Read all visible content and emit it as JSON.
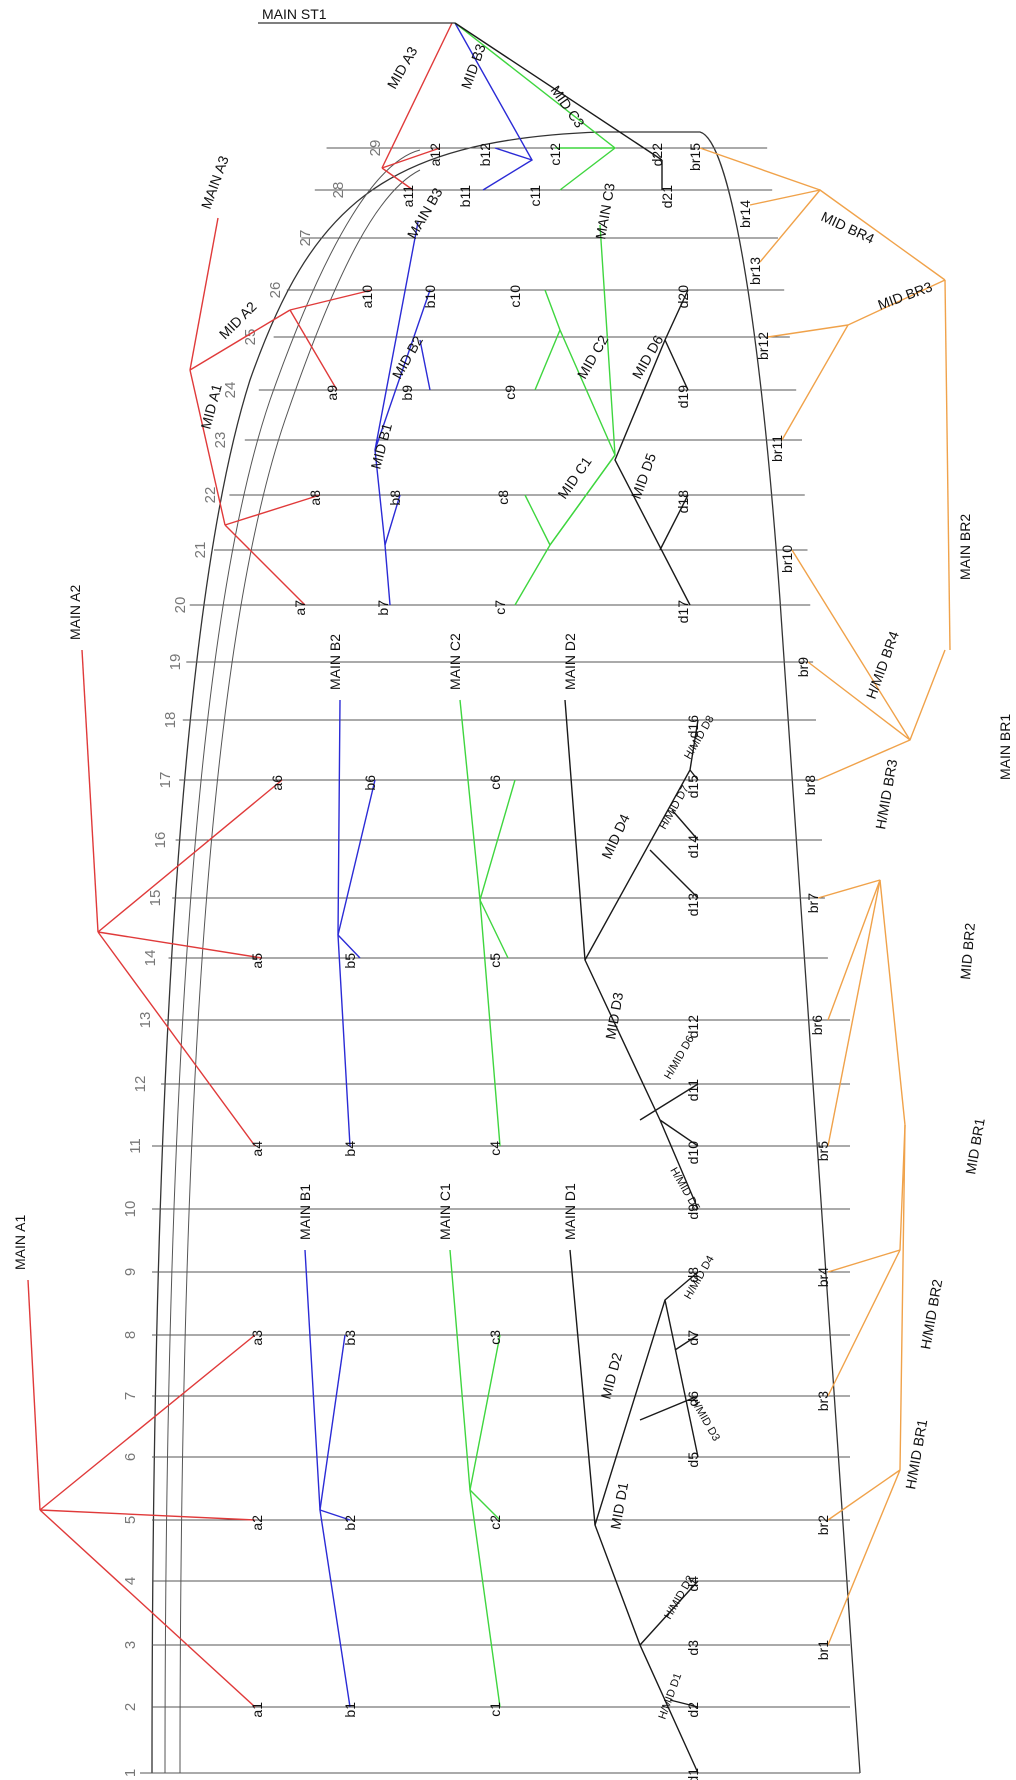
{
  "colors": {
    "a": "#e03a3a",
    "b": "#2b2bd6",
    "c": "#3fd63f",
    "d": "#1a1a1a",
    "br": "#f0a24a",
    "frame": "#333333"
  },
  "title": "MAIN ST1",
  "row_numbers": [
    "1",
    "2",
    "3",
    "4",
    "5",
    "6",
    "7",
    "8",
    "9",
    "10",
    "11",
    "12",
    "13",
    "14",
    "15",
    "16",
    "17",
    "18",
    "19",
    "20",
    "21",
    "22",
    "23",
    "24",
    "25",
    "26",
    "27",
    "28",
    "29"
  ],
  "a_points": [
    "a1",
    "a2",
    "a3",
    "a4",
    "a5",
    "a6",
    "a7",
    "a8",
    "a9",
    "a10",
    "a11",
    "a12"
  ],
  "b_points": [
    "b1",
    "b2",
    "b3",
    "b4",
    "b5",
    "b6",
    "b7",
    "b8",
    "b9",
    "b10",
    "b11",
    "b12"
  ],
  "c_points": [
    "c1",
    "c2",
    "c3",
    "c4",
    "c5",
    "c6",
    "c7",
    "c8",
    "c9",
    "c10",
    "c11",
    "c12"
  ],
  "d_points": [
    "d1",
    "d2",
    "d3",
    "d4",
    "d5",
    "d6",
    "d7",
    "d8",
    "d9",
    "d10",
    "d11",
    "d12",
    "d13",
    "d14",
    "d15",
    "d16",
    "d17",
    "d18",
    "d19",
    "d20",
    "d21",
    "d22"
  ],
  "br_points": [
    "br1",
    "br2",
    "br3",
    "br4",
    "br5",
    "br6",
    "br7",
    "br8",
    "br9",
    "br10",
    "br11",
    "br12",
    "br13",
    "br14",
    "br15"
  ],
  "branch_labels": {
    "main_a1": "MAIN A1",
    "main_a2": "MAIN A2",
    "main_a3": "MAIN A3",
    "mid_a1": "MID A1",
    "mid_a2": "MID A2",
    "mid_a3": "MID A3",
    "main_b1": "MAIN B1",
    "main_b2": "MAIN B2",
    "main_b3": "MAIN B3",
    "mid_b1": "MID B1",
    "mid_b2": "MID B2",
    "mid_b3": "MID B3",
    "main_c1": "MAIN C1",
    "main_c2": "MAIN C2",
    "main_c3": "MAIN C3",
    "mid_c1": "MID C1",
    "mid_c2": "MID C2",
    "mid_c3": "MID C3",
    "main_d1": "MAIN D1",
    "main_d2": "MAIN D2",
    "mid_d1": "MID D1",
    "mid_d2": "MID D2",
    "mid_d3": "MID D3",
    "mid_d4": "MID D4",
    "mid_d5": "MID D5",
    "mid_d6": "MID D6",
    "hmid_d1": "H/MID D1",
    "hmid_d2": "H/MID D2",
    "hmid_d3": "H/MID D3",
    "hmid_d4": "H/MID D4",
    "hmid_d5": "H/MID D5",
    "hmid_d6": "H/MID D6",
    "hmid_d7": "H/MID D7",
    "hmid_d8": "H/MID D8",
    "main_br1": "MAIN BR1",
    "main_br2": "MAIN BR2",
    "mid_br1": "MID BR1",
    "mid_br2": "MID BR2",
    "mid_br3": "MID BR3",
    "mid_br4": "MID BR4",
    "hmid_br1": "H/MID BR1",
    "hmid_br2": "H/MID BR2",
    "hmid_br3": "H/MID BR3",
    "hmid_br4": "H/MID BR4"
  }
}
